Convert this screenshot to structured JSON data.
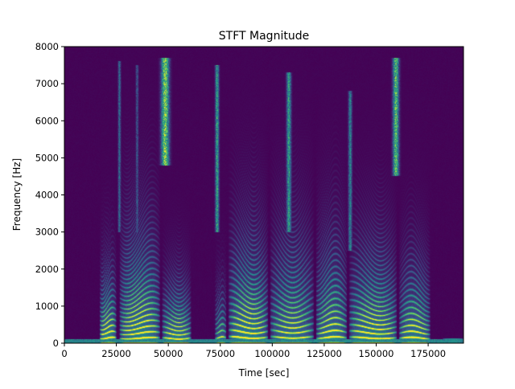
{
  "chart_data": {
    "type": "heatmap",
    "title": "STFT Magnitude",
    "xlabel": "Time [sec]",
    "ylabel": "Frequency [Hz]",
    "xlim": [
      0,
      192000
    ],
    "ylim": [
      0,
      8000
    ],
    "xticks": [
      0,
      25000,
      50000,
      75000,
      100000,
      125000,
      150000,
      175000
    ],
    "xtick_labels": [
      "0",
      "25000",
      "50000",
      "75000",
      "100000",
      "125000",
      "150000",
      "175000"
    ],
    "yticks": [
      0,
      1000,
      2000,
      3000,
      4000,
      5000,
      6000,
      7000,
      8000
    ],
    "ytick_labels": [
      "0",
      "1000",
      "2000",
      "3000",
      "4000",
      "5000",
      "6000",
      "7000",
      "8000"
    ],
    "colormap": [
      "#440154",
      "#3b528b",
      "#21918c",
      "#5ec962",
      "#fde725"
    ],
    "background_color": "#440154",
    "segments": [
      {
        "start": 17000,
        "end": 25000,
        "f0": 140,
        "max_freq": 2300,
        "strength": 1.0
      },
      {
        "start": 26500,
        "end": 46000,
        "f0": 135,
        "max_freq": 3600,
        "strength": 0.95
      },
      {
        "start": 47000,
        "end": 61000,
        "f0": 130,
        "max_freq": 2000,
        "strength": 0.95
      },
      {
        "start": 72500,
        "end": 78000,
        "f0": 150,
        "max_freq": 1800,
        "strength": 0.7
      },
      {
        "start": 79000,
        "end": 98000,
        "f0": 155,
        "max_freq": 3400,
        "strength": 0.95
      },
      {
        "start": 99000,
        "end": 120000,
        "f0": 160,
        "max_freq": 3500,
        "strength": 0.8
      },
      {
        "start": 121000,
        "end": 136000,
        "f0": 150,
        "max_freq": 3300,
        "strength": 0.85
      },
      {
        "start": 137000,
        "end": 160000,
        "f0": 145,
        "max_freq": 3000,
        "strength": 0.95
      },
      {
        "start": 161000,
        "end": 176000,
        "f0": 140,
        "max_freq": 2600,
        "strength": 0.9
      },
      {
        "start": 182000,
        "end": 192000,
        "f0": 0,
        "max_freq": 120,
        "strength": 0.6
      }
    ],
    "fricative_bursts": [
      {
        "time": 48500,
        "width": 2600,
        "low": 4800,
        "high": 7700,
        "strength": 1.0
      },
      {
        "time": 73500,
        "width": 1200,
        "low": 3000,
        "high": 7500,
        "strength": 0.75
      },
      {
        "time": 108000,
        "width": 1500,
        "low": 3000,
        "high": 7300,
        "strength": 0.7
      },
      {
        "time": 137500,
        "width": 1200,
        "low": 2500,
        "high": 6800,
        "strength": 0.55
      },
      {
        "time": 159500,
        "width": 2000,
        "low": 4500,
        "high": 7700,
        "strength": 0.9
      },
      {
        "time": 26500,
        "width": 900,
        "low": 3000,
        "high": 7600,
        "strength": 0.45
      },
      {
        "time": 35000,
        "width": 900,
        "low": 3000,
        "high": 7500,
        "strength": 0.35
      }
    ]
  }
}
